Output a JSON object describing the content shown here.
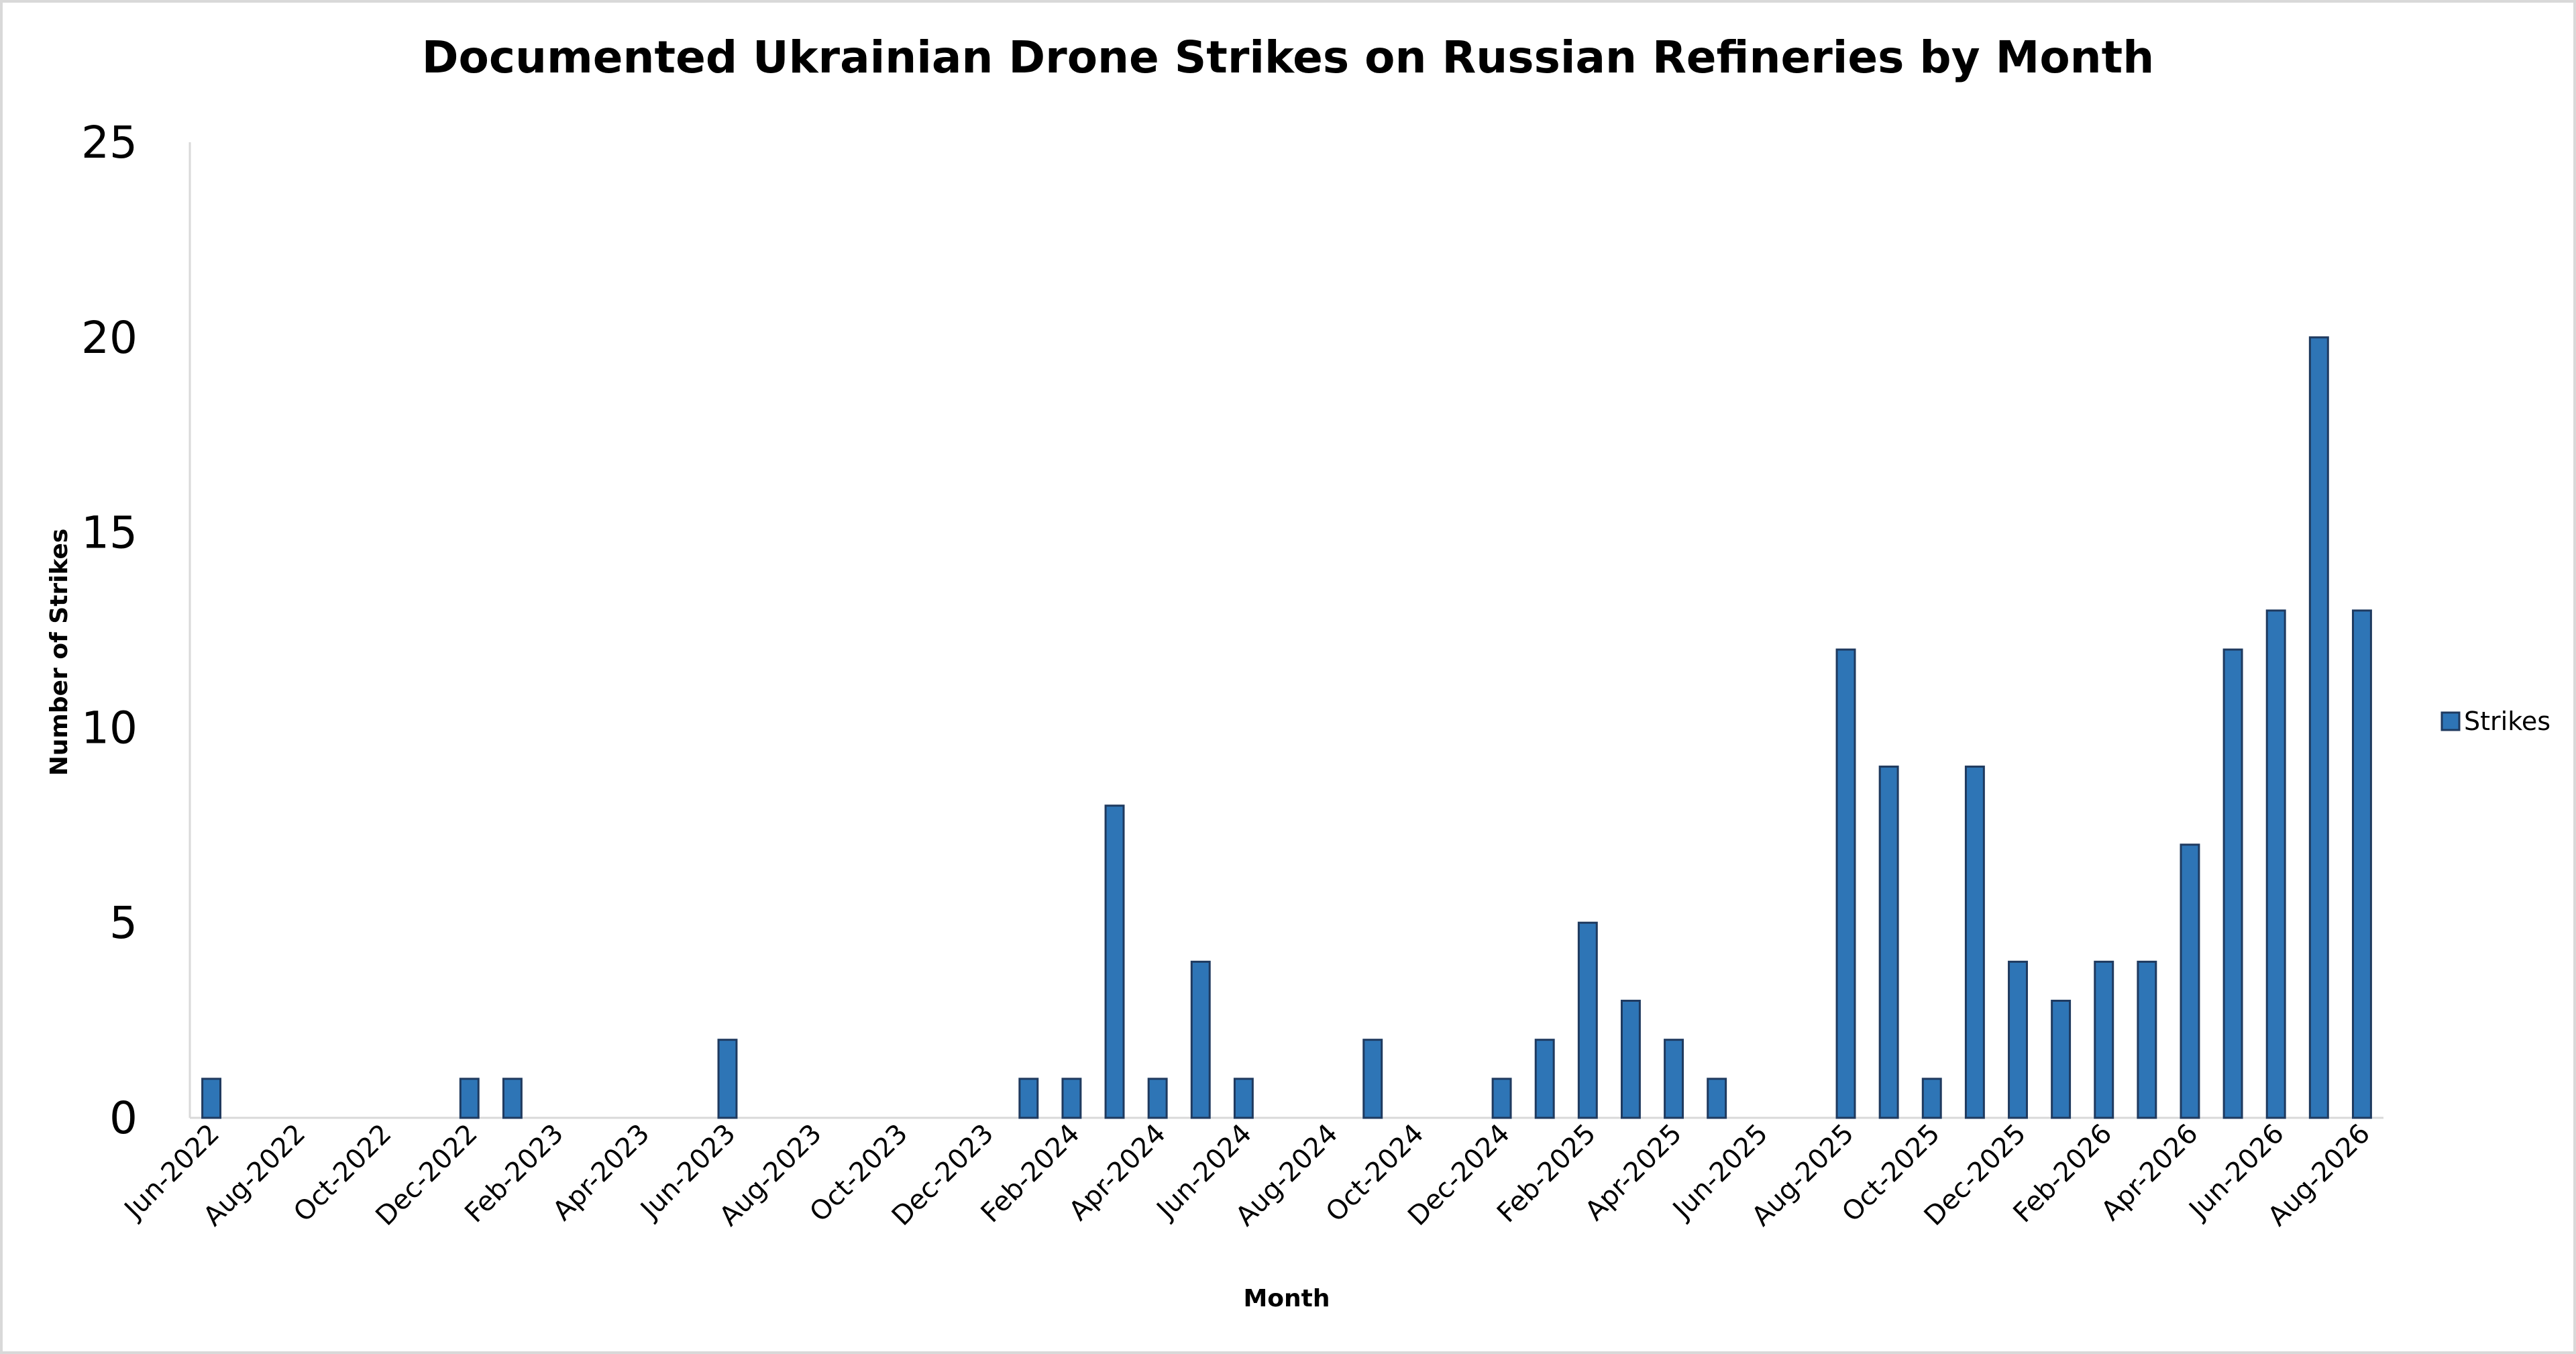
{
  "chart_data": {
    "type": "bar",
    "title": "Documented Ukrainian Drone Strikes on Russian Refineries by Month",
    "xlabel": "Month",
    "ylabel": "Number of Strikes",
    "ylim": [
      0,
      25
    ],
    "yticks": [
      0,
      5,
      10,
      15,
      20,
      25
    ],
    "grid": false,
    "legend_position": "right",
    "bar_color": "#2e75b6",
    "bar_edge_color": "#1f3a5f",
    "axis_color": "#d9d9d9",
    "categories": [
      "Jun-2022",
      "Jul-2022",
      "Aug-2022",
      "Sep-2022",
      "Oct-2022",
      "Nov-2022",
      "Dec-2022",
      "Jan-2023",
      "Feb-2023",
      "Mar-2023",
      "Apr-2023",
      "May-2023",
      "Jun-2023",
      "Jul-2023",
      "Aug-2023",
      "Sep-2023",
      "Oct-2023",
      "Nov-2023",
      "Dec-2023",
      "Jan-2024",
      "Feb-2024",
      "Mar-2024",
      "Apr-2024",
      "May-2024",
      "Jun-2024",
      "Jul-2024",
      "Aug-2024",
      "Sep-2024",
      "Oct-2024",
      "Nov-2024",
      "Dec-2024",
      "Jan-2025",
      "Feb-2025",
      "Mar-2025",
      "Apr-2025",
      "May-2025",
      "Jun-2025",
      "Jul-2025",
      "Aug-2025",
      "Sep-2025",
      "Oct-2025",
      "Nov-2025",
      "Dec-2025",
      "Jan-2026",
      "Feb-2026",
      "Mar-2026",
      "Apr-2026",
      "May-2026",
      "Jun-2026",
      "Jul-2026",
      "Aug-2026"
    ],
    "tick_labels": [
      "Jun-2022",
      "Aug-2022",
      "Oct-2022",
      "Dec-2022",
      "Feb-2023",
      "Apr-2023",
      "Jun-2023",
      "Aug-2023",
      "Oct-2023",
      "Dec-2023",
      "Feb-2024",
      "Apr-2024",
      "Jun-2024",
      "Aug-2024",
      "Oct-2024",
      "Dec-2024",
      "Feb-2025",
      "Apr-2025",
      "Jun-2025",
      "Aug-2025",
      "Oct-2025",
      "Dec-2025",
      "Feb-2026",
      "Apr-2026",
      "Jun-2026",
      "Aug-2026"
    ],
    "series": [
      {
        "name": "Strikes",
        "values": [
          1,
          0,
          0,
          0,
          0,
          0,
          1,
          1,
          0,
          0,
          0,
          0,
          2,
          0,
          0,
          0,
          0,
          0,
          0,
          1,
          1,
          8,
          1,
          4,
          1,
          0,
          0,
          2,
          0,
          0,
          1,
          2,
          5,
          3,
          2,
          1,
          0,
          0,
          12,
          9,
          1,
          9,
          4,
          3,
          4,
          4,
          7,
          12,
          13,
          20,
          13
        ]
      }
    ]
  }
}
